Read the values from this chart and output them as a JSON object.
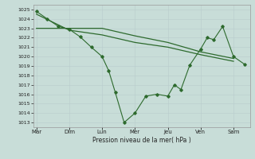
{
  "background_color": "#c8ddd8",
  "grid_color": "#b8cccc",
  "line_color": "#2d6a2d",
  "x_labels": [
    "Mar",
    "Dim",
    "Lun",
    "Mer",
    "Jeu",
    "Ven",
    "Sam"
  ],
  "x_ticks": [
    0,
    1,
    2,
    3,
    4,
    5,
    6
  ],
  "ylim": [
    1012.5,
    1025.5
  ],
  "yticks": [
    1013,
    1014,
    1015,
    1016,
    1017,
    1018,
    1019,
    1020,
    1021,
    1022,
    1023,
    1024,
    1025
  ],
  "xlabel": "Pression niveau de la mer( hPa )",
  "series1_x": [
    0,
    0.33,
    0.67,
    1.0,
    1.33,
    1.67,
    2.0,
    2.2,
    2.4,
    2.67,
    3.0,
    3.33,
    3.67,
    4.0,
    4.2,
    4.4,
    4.67,
    5.0,
    5.2,
    5.4,
    5.67,
    6.0,
    6.33
  ],
  "series1_y": [
    1024.8,
    1024.0,
    1023.2,
    1022.9,
    1022.1,
    1021.0,
    1020.0,
    1018.5,
    1016.2,
    1013.0,
    1014.0,
    1015.8,
    1016.0,
    1015.8,
    1017.0,
    1016.5,
    1019.1,
    1020.8,
    1022.0,
    1021.8,
    1023.2,
    1020.0,
    1019.2
  ],
  "series2_x": [
    0,
    1,
    2,
    3,
    4,
    5,
    6
  ],
  "series2_y": [
    1023.0,
    1023.0,
    1023.0,
    1022.2,
    1021.5,
    1020.5,
    1019.8
  ],
  "series3_x": [
    0,
    1,
    2,
    3,
    4,
    5,
    6
  ],
  "series3_y": [
    1024.5,
    1022.8,
    1022.3,
    1021.5,
    1021.0,
    1020.2,
    1019.5
  ],
  "figsize": [
    3.2,
    2.0
  ],
  "dpi": 100
}
